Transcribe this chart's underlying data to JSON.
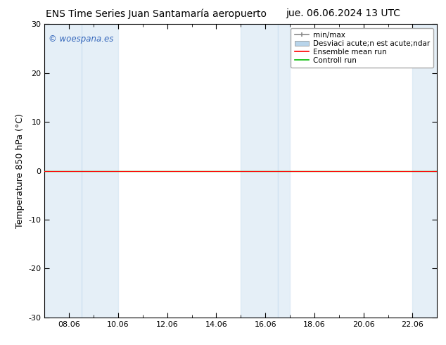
{
  "title_left": "ENS Time Series Juan Santamaría aeropuerto",
  "title_right": "jue. 06.06.2024 13 UTC",
  "ylabel": "Temperature 850 hPa (°C)",
  "ylim": [
    -30,
    30
  ],
  "yticks": [
    -30,
    -20,
    -10,
    0,
    10,
    20,
    30
  ],
  "xlim_days": [
    7.0,
    23.0
  ],
  "xtick_positions": [
    8,
    10,
    12,
    14,
    16,
    18,
    20,
    22
  ],
  "xtick_labels": [
    "08.06",
    "10.06",
    "12.06",
    "14.06",
    "16.06",
    "18.06",
    "20.06",
    "22.06"
  ],
  "shaded_bands": [
    [
      7.0,
      8.5
    ],
    [
      8.5,
      10.0
    ],
    [
      15.0,
      16.5
    ],
    [
      16.5,
      17.0
    ],
    [
      22.0,
      23.0
    ]
  ],
  "band_color": "#cce0f0",
  "background_color": "#ffffff",
  "plot_bg_color": "#ffffff",
  "zero_line_color": "#000000",
  "watermark": "© woespana.es",
  "watermark_color": "#3366bb",
  "legend_labels": [
    "min/max",
    "Desviaci acute;n est acute;ndar",
    "Ensemble mean run",
    "Controll run"
  ],
  "legend_line_colors": [
    "#999999",
    "#b8d4e8",
    "#ff0000",
    "#00bb00"
  ],
  "title_fontsize": 10,
  "tick_fontsize": 8,
  "ylabel_fontsize": 9,
  "legend_fontsize": 7.5
}
